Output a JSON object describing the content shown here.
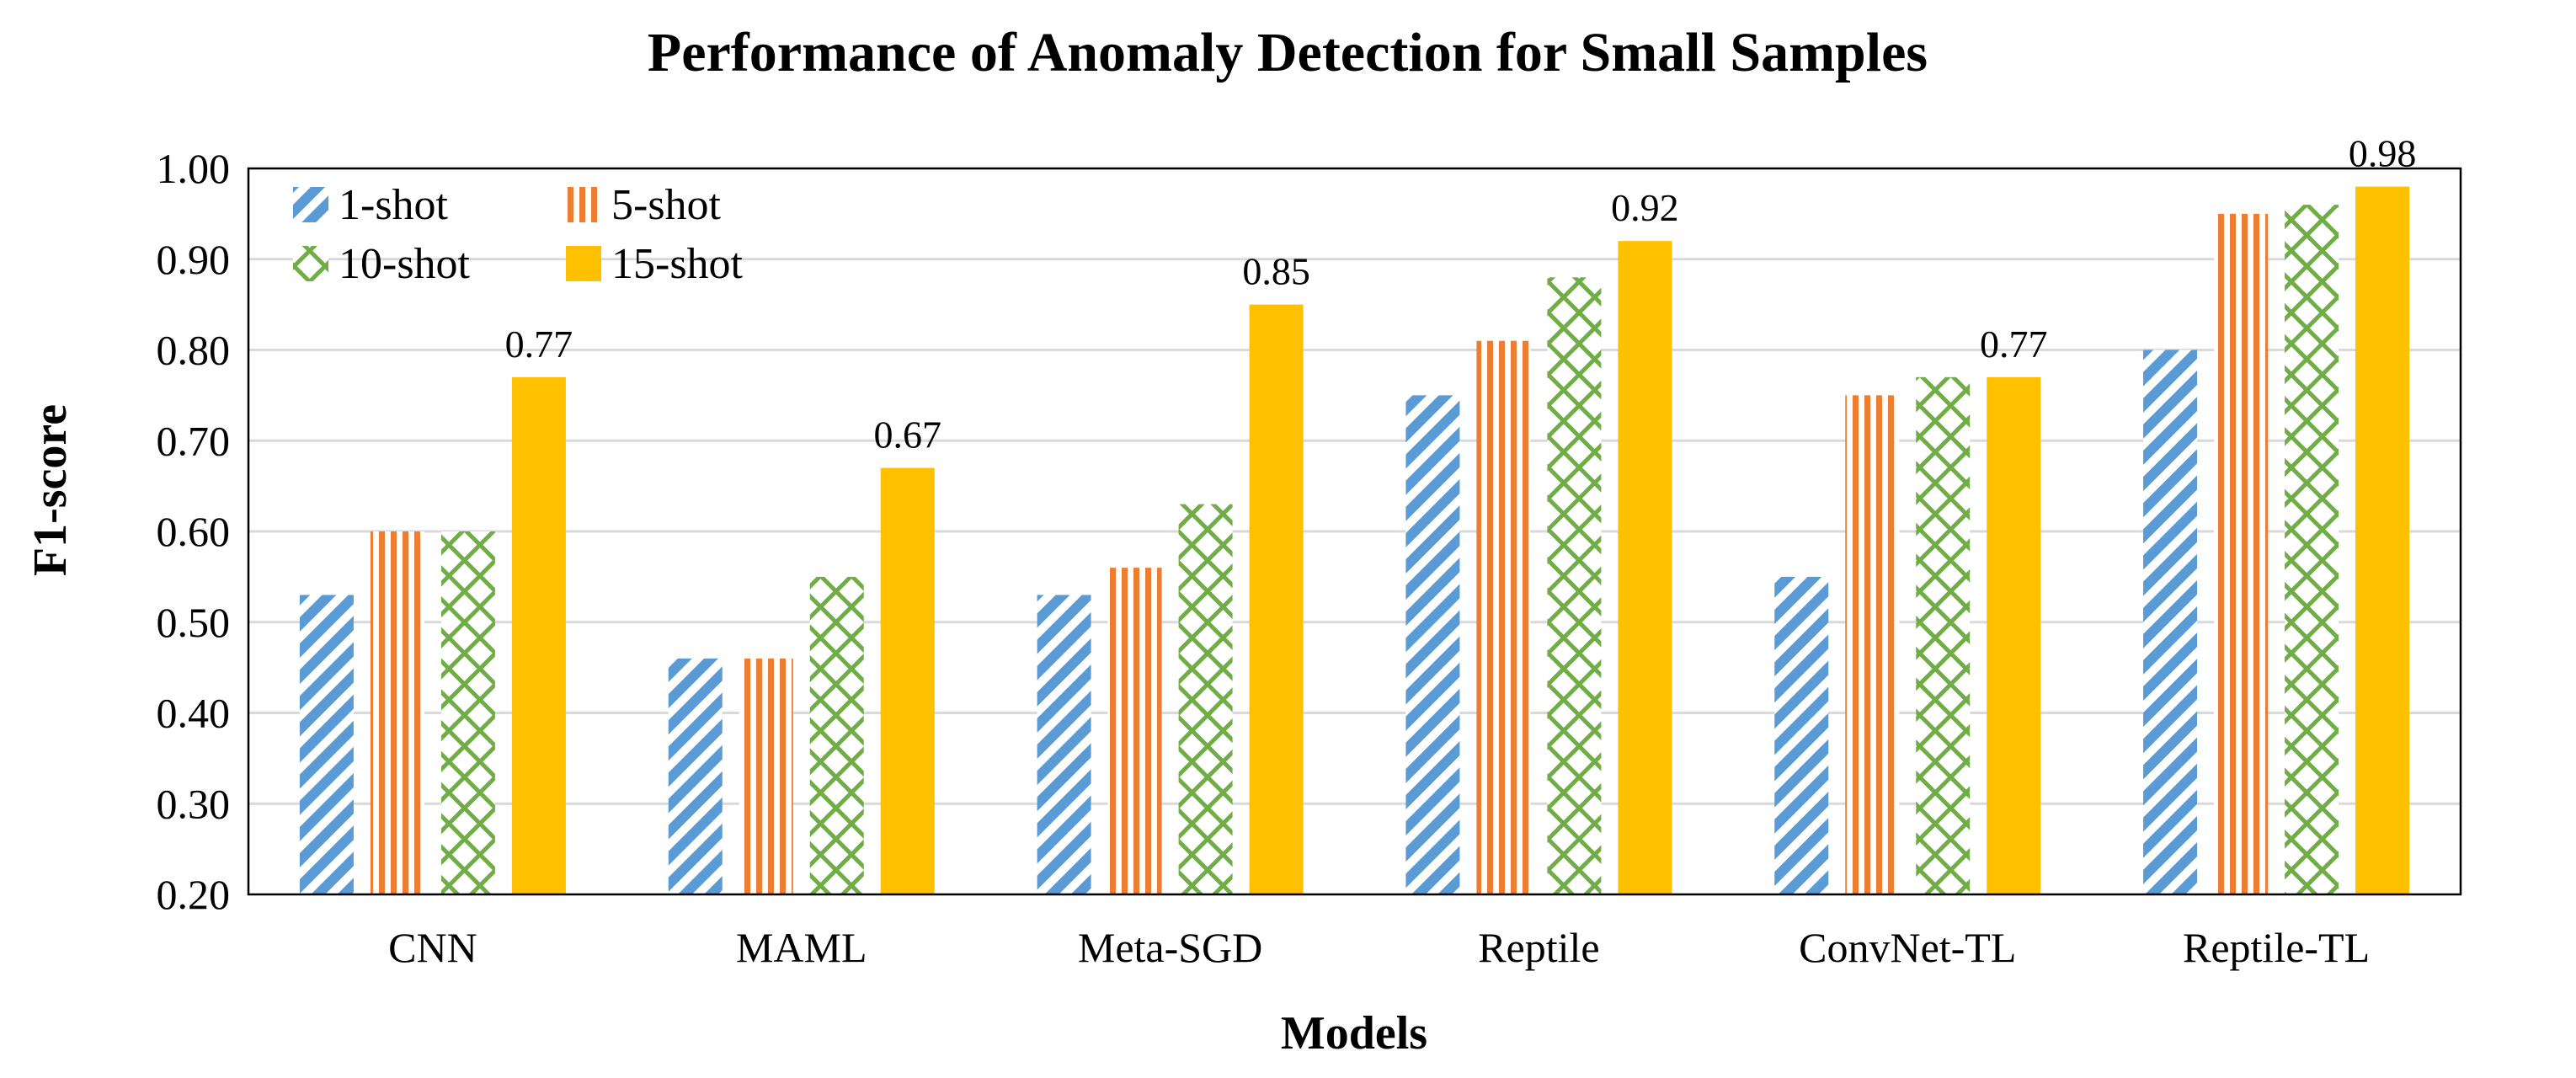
{
  "chart_data": {
    "type": "bar",
    "title": "Performance of Anomaly Detection for Small Samples",
    "xlabel": "Models",
    "ylabel": "F1-score",
    "ylim": [
      0.2,
      1.0
    ],
    "yticks": [
      "0.20",
      "0.30",
      "0.40",
      "0.50",
      "0.60",
      "0.70",
      "0.80",
      "0.90",
      "1.00"
    ],
    "categories": [
      "CNN",
      "MAML",
      "Meta-SGD",
      "Reptile",
      "ConvNet-TL",
      "Reptile-TL"
    ],
    "series": [
      {
        "name": "1-shot",
        "values": [
          0.53,
          0.46,
          0.53,
          0.75,
          0.55,
          0.8
        ],
        "color": "#5B9BD5",
        "pattern": "diagonal"
      },
      {
        "name": "5-shot",
        "values": [
          0.6,
          0.46,
          0.56,
          0.81,
          0.75,
          0.95
        ],
        "color": "#ED7D31",
        "pattern": "vertical"
      },
      {
        "name": "10-shot",
        "values": [
          0.6,
          0.55,
          0.63,
          0.88,
          0.77,
          0.96
        ],
        "color": "#70AD47",
        "pattern": "crosshatch"
      },
      {
        "name": "15-shot",
        "values": [
          0.77,
          0.67,
          0.85,
          0.92,
          0.77,
          0.98
        ],
        "color": "#FFC000",
        "pattern": "solid"
      }
    ],
    "data_labels": {
      "series": "15-shot",
      "labels": [
        "0.77",
        "0.67",
        "0.85",
        "0.92",
        "0.77",
        "0.98"
      ]
    },
    "grid": true,
    "legend_position": "top-left"
  }
}
